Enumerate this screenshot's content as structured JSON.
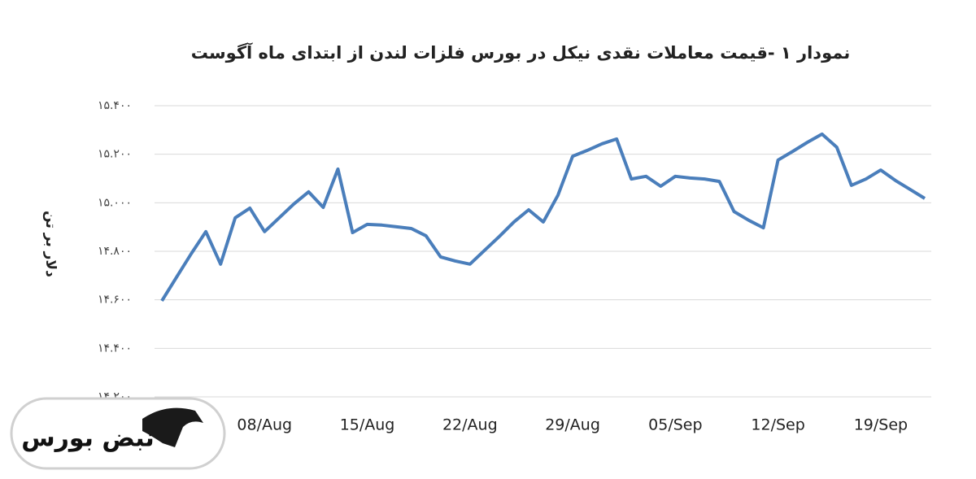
{
  "chart_data": {
    "type": "line",
    "title": "نمودار ۱ -قیمت معاملات نقدی نیکل در بورس فلزات لندن از ابتدای ماه آگوست",
    "y_label": "دلار بر تن",
    "logo": "نبض بورس",
    "categories": [
      null,
      null,
      null,
      null,
      null,
      null,
      null,
      "08/Aug",
      null,
      null,
      null,
      null,
      null,
      null,
      "15/Aug",
      null,
      null,
      null,
      null,
      null,
      null,
      "22/Aug",
      null,
      null,
      null,
      null,
      null,
      null,
      "29/Aug",
      null,
      null,
      null,
      null,
      null,
      null,
      "05/Sep",
      null,
      null,
      null,
      null,
      null,
      null,
      "12/Sep",
      null,
      null,
      null,
      null,
      null,
      null,
      "19/Sep",
      null,
      null,
      null
    ],
    "series": [
      {
        "color": "#4a7ebb",
        "values": [
          14596,
          14693,
          14790,
          14881,
          14747,
          14938,
          14978,
          14881,
          14938,
          14995,
          15045,
          14981,
          15139,
          14877,
          14911,
          14908,
          14901,
          14894,
          14864,
          14777,
          14760,
          14747,
          14804,
          14861,
          14921,
          14971,
          14921,
          15031,
          15192,
          15216,
          15243,
          15263,
          15098,
          15109,
          15068,
          15109,
          15102,
          15098,
          15088,
          14964,
          14928,
          14897,
          15176,
          15212,
          15249,
          15283,
          15229,
          15072,
          15098,
          15135,
          15092,
          15055,
          15018
        ]
      }
    ],
    "ylim": [
      14200,
      15400
    ],
    "yticks": [
      {
        "value": 14200,
        "label": "۱۴.۲۰۰"
      },
      {
        "value": 14400,
        "label": "۱۴.۴۰۰"
      },
      {
        "value": 14600,
        "label": "۱۴.۶۰۰"
      },
      {
        "value": 14800,
        "label": "۱۴.۸۰۰"
      },
      {
        "value": 15000,
        "label": "۱۵.۰۰۰"
      },
      {
        "value": 15200,
        "label": "۱۵.۲۰۰"
      },
      {
        "value": 15400,
        "label": "۱۵.۴۰۰"
      }
    ],
    "grid": true
  }
}
